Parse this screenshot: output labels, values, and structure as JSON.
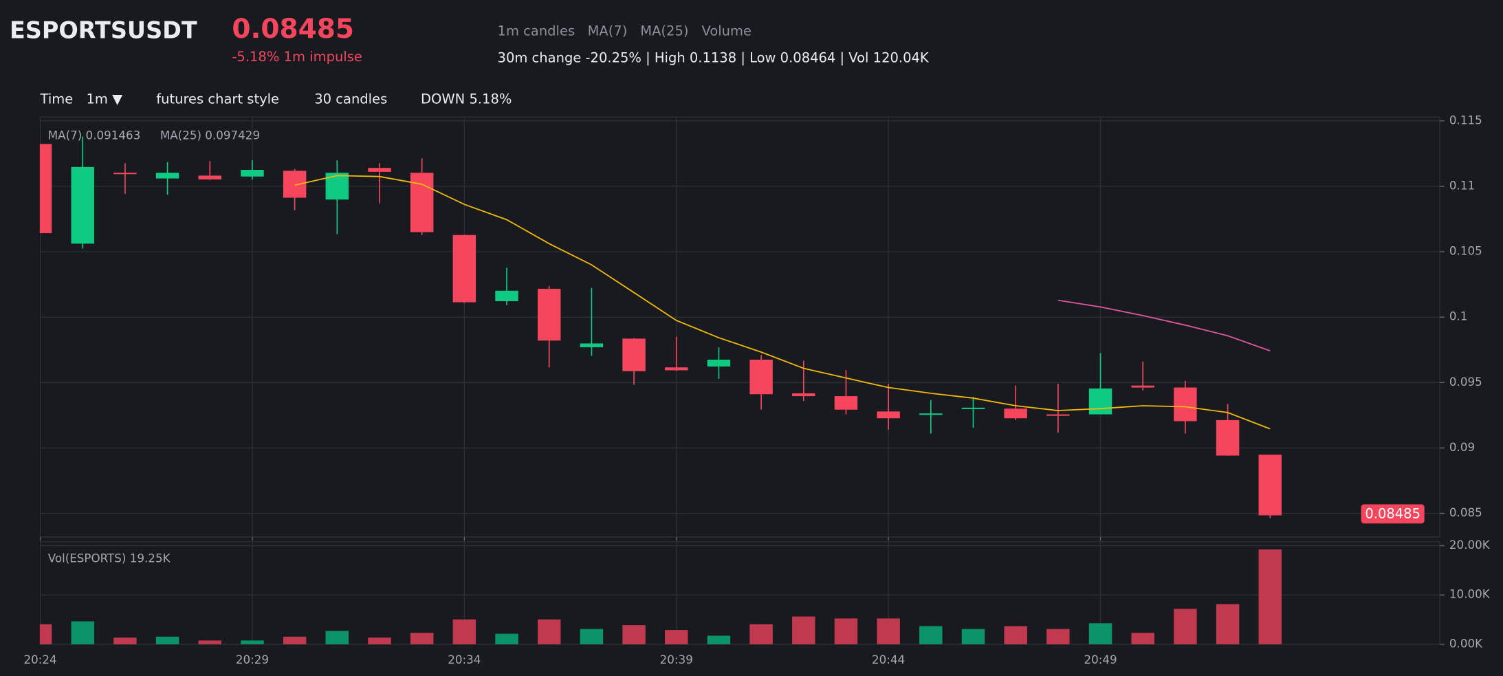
{
  "header": {
    "symbol": "ESPORTSUSDT",
    "last_price": "0.08485",
    "impulse": "-5.18% 1m impulse",
    "legend": [
      "1m candles",
      "Volume"
    ],
    "stats": "30m change -20.25% | High 0.1138 | Low 0.08464 | Vol 120.04K"
  },
  "toolbar": {
    "time_label": "Time",
    "interval": "1m ▼",
    "style": "futures chart style",
    "count": "30 candles",
    "direction": "DOWN 5.18%"
  },
  "chart_data": [
    {
      "type": "candlestick",
      "annotations": [
        "MA(7) 0.091463",
        "MA(25) 0.097429"
      ],
      "up_color": "#0ecb81",
      "down_color": "#f6465d",
      "open": [
        0.11324,
        0.10562,
        0.11104,
        0.1106,
        0.11082,
        0.11075,
        0.11119,
        0.10899,
        0.11141,
        0.11104,
        0.10628,
        0.10122,
        0.10217,
        0.0977,
        0.09836,
        0.09616,
        0.09623,
        0.09675,
        0.09418,
        0.09396,
        0.09279,
        0.09257,
        0.09301,
        0.09301,
        0.09257,
        0.09257,
        0.09477,
        0.09462,
        0.09213,
        0.08949
      ],
      "high": [
        0.11324,
        0.1138,
        0.11177,
        0.11185,
        0.11192,
        0.112,
        0.11133,
        0.11199,
        0.11177,
        0.11214,
        0.1063,
        0.10378,
        0.10239,
        0.10224,
        0.0984,
        0.09851,
        0.0977,
        0.09711,
        0.09667,
        0.09594,
        0.09491,
        0.09367,
        0.09389,
        0.09477,
        0.09491,
        0.09726,
        0.0966,
        0.09513,
        0.09337,
        0.0895
      ],
      "low": [
        0.10642,
        0.10525,
        0.10943,
        0.10936,
        0.1105,
        0.11053,
        0.10818,
        0.10635,
        0.1087,
        0.10628,
        0.1011,
        0.10092,
        0.09616,
        0.09704,
        0.09484,
        0.0959,
        0.09528,
        0.09293,
        0.09359,
        0.09257,
        0.0914,
        0.0911,
        0.09154,
        0.09213,
        0.09117,
        0.09257,
        0.0944,
        0.0911,
        0.0894,
        0.08464
      ],
      "close": [
        0.10642,
        0.11148,
        0.11097,
        0.11104,
        0.11053,
        0.11126,
        0.10913,
        0.11104,
        0.11111,
        0.1065,
        0.10114,
        0.10202,
        0.09821,
        0.09799,
        0.09587,
        0.09594,
        0.09675,
        0.09411,
        0.09396,
        0.09293,
        0.09227,
        0.09264,
        0.09308,
        0.09227,
        0.0925,
        0.09455,
        0.09462,
        0.09205,
        0.08942,
        0.08485
      ],
      "series": [
        {
          "name": "MA(7)",
          "color": "#f0b90b",
          "values": [
            null,
            null,
            null,
            null,
            null,
            null,
            0.11009,
            0.11082,
            0.11075,
            0.11016,
            0.10862,
            0.10745,
            0.10562,
            0.104,
            0.10188,
            0.09975,
            0.09843,
            0.09733,
            0.09609,
            0.09535,
            0.09462,
            0.09418,
            0.09381,
            0.09323,
            0.09286,
            0.09301,
            0.09323,
            0.09315,
            0.09271,
            0.091463
          ]
        },
        {
          "name": "MA(25)",
          "color": "#e0559f",
          "values": [
            null,
            null,
            null,
            null,
            null,
            null,
            null,
            null,
            null,
            null,
            null,
            null,
            null,
            null,
            null,
            null,
            null,
            null,
            null,
            null,
            null,
            null,
            null,
            null,
            0.10129,
            0.10078,
            0.10012,
            0.09939,
            0.09858,
            0.097429
          ]
        }
      ],
      "ylim": [
        0.0832,
        0.1153
      ],
      "yticks": [
        0.085,
        0.09,
        0.095,
        0.1,
        0.105,
        0.11,
        0.115
      ],
      "grid": true
    },
    {
      "type": "bar",
      "annotation": "Vol(ESPORTS) 19.25K",
      "categories": [
        "20:24",
        null,
        null,
        null,
        null,
        "20:29",
        null,
        null,
        null,
        null,
        "20:34",
        null,
        null,
        null,
        null,
        "20:39",
        null,
        null,
        null,
        null,
        "20:44",
        null,
        null,
        null,
        null,
        "20:49",
        null,
        null,
        null,
        null
      ],
      "series": [
        {
          "name": "Volume",
          "up_color": "#0b9467",
          "down_color": "#c0394e",
          "values": [
            4080,
            4660,
            1360,
            1550,
            780,
            780,
            1550,
            2720,
            1360,
            2330,
            5050,
            2140,
            5050,
            3110,
            3880,
            2910,
            1750,
            4080,
            5630,
            5240,
            5240,
            3690,
            3110,
            3690,
            3110,
            4270,
            2330,
            7190,
            8160,
            19250
          ]
        }
      ],
      "ylim": [
        0,
        20800
      ],
      "yticks": [
        {
          "value": 0,
          "label": "0.00K"
        },
        {
          "value": 10000,
          "label": "10.00K"
        },
        {
          "value": 20000,
          "label": "20.00K"
        }
      ],
      "grid": true
    }
  ]
}
